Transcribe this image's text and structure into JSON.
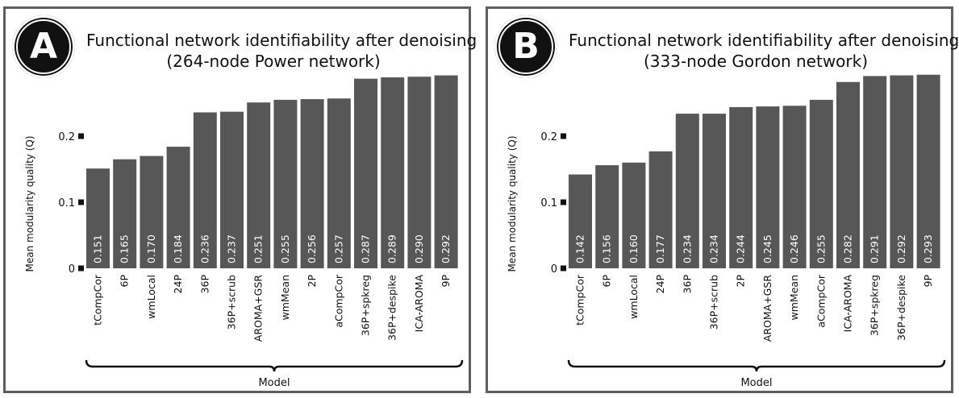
{
  "panels": [
    {
      "badge": "A",
      "title_line1": "Functional network identifiability after denoising",
      "title_line2": "(264-node Power network)"
    },
    {
      "badge": "B",
      "title_line1": "Functional network identifiability after denoising",
      "title_line2": "(333-node Gordon network)"
    }
  ],
  "colors": {
    "bar": "#575757",
    "bar_label": "#ffffff",
    "frame": "#5e5e5e"
  },
  "chart_data": [
    {
      "type": "bar",
      "title": "Functional network identifiability after denoising (264-node Power network)",
      "xlabel": "Model",
      "ylabel": "Mean modularity quality (Q)",
      "ylim": [
        0,
        0.3
      ],
      "yticks": [
        0,
        0.1,
        0.2
      ],
      "ytick_labels": [
        "0",
        "0.1",
        "0.2"
      ],
      "grid": false,
      "categories": [
        "tCompCor",
        "6P",
        "wmLocal",
        "24P",
        "36P",
        "36P+scrub",
        "AROMA+GSR",
        "wmMean",
        "2P",
        "aCompCor",
        "36P+spkreg",
        "36P+despike",
        "ICA-AROMA",
        "9P"
      ],
      "values": [
        0.151,
        0.165,
        0.17,
        0.184,
        0.236,
        0.237,
        0.251,
        0.255,
        0.256,
        0.257,
        0.287,
        0.289,
        0.29,
        0.292
      ],
      "value_labels": [
        "0.151",
        "0.165",
        "0.170",
        "0.184",
        "0.236",
        "0.237",
        "0.251",
        "0.255",
        "0.256",
        "0.257",
        "0.287",
        "0.289",
        "0.290",
        "0.292"
      ]
    },
    {
      "type": "bar",
      "title": "Functional network identifiability after denoising (333-node Gordon network)",
      "xlabel": "Model",
      "ylabel": "Mean modularity quality (Q)",
      "ylim": [
        0,
        0.3
      ],
      "yticks": [
        0,
        0.1,
        0.2
      ],
      "ytick_labels": [
        "0",
        "0.1",
        "0.2"
      ],
      "grid": false,
      "categories": [
        "tCompCor",
        "6P",
        "wmLocal",
        "24P",
        "36P",
        "36P+scrub",
        "2P",
        "AROMA+GSR",
        "wmMean",
        "aCompCor",
        "ICA-AROMA",
        "36P+spkreg",
        "36P+despike",
        "9P"
      ],
      "values": [
        0.142,
        0.156,
        0.16,
        0.177,
        0.234,
        0.234,
        0.244,
        0.245,
        0.246,
        0.255,
        0.282,
        0.291,
        0.292,
        0.293
      ],
      "value_labels": [
        "0.142",
        "0.156",
        "0.160",
        "0.177",
        "0.234",
        "0.234",
        "0.244",
        "0.245",
        "0.246",
        "0.255",
        "0.282",
        "0.291",
        "0.292",
        "0.293"
      ]
    }
  ]
}
